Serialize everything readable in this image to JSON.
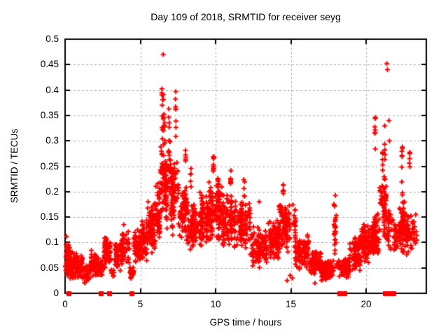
{
  "chart_data": {
    "type": "scatter",
    "title": "Day 109 of 2018, SRMTID for receiver seyg",
    "xlabel": "GPS time / hours",
    "ylabel": "SRMTID / TECUs",
    "xlim": [
      0,
      24
    ],
    "ylim": [
      0,
      0.5
    ],
    "x_tick_values": [
      0,
      5,
      10,
      15,
      20
    ],
    "x_tick_labels": [
      "0",
      "5",
      "10",
      "15",
      "20"
    ],
    "y_tick_values": [
      0,
      0.05,
      0.1,
      0.15,
      0.2,
      0.25,
      0.3,
      0.35,
      0.4,
      0.45,
      0.5
    ],
    "y_tick_labels": [
      "0",
      "0.05",
      "0.1",
      "0.15",
      "0.2",
      "0.25",
      "0.3",
      "0.35",
      "0.4",
      "0.45",
      "0.5"
    ],
    "grid": true,
    "legend": "none",
    "marker": "plus",
    "marker_color": "#ff0000",
    "grid_color": "#aaaaaa",
    "border_color": "#000000",
    "text_color": "#000000",
    "background_color": "#ffffff",
    "seed": 42,
    "segments_format": "[t_start_hours, t_end_hours, n_points, y_min_TECUs, y_max_TECUs]",
    "envelope_segments": [
      [
        0.0,
        0.35,
        80,
        0.03,
        0.105
      ],
      [
        0.35,
        0.75,
        70,
        0.025,
        0.085
      ],
      [
        0.75,
        1.15,
        55,
        0.028,
        0.075
      ],
      [
        1.15,
        1.65,
        40,
        0.018,
        0.058
      ],
      [
        1.65,
        2.15,
        55,
        0.03,
        0.088
      ],
      [
        2.15,
        2.6,
        45,
        0.03,
        0.072
      ],
      [
        2.6,
        3.05,
        70,
        0.04,
        0.115
      ],
      [
        3.05,
        3.3,
        8,
        0.03,
        0.06
      ],
      [
        3.3,
        3.75,
        55,
        0.04,
        0.11
      ],
      [
        3.75,
        4.3,
        60,
        0.045,
        0.125
      ],
      [
        4.3,
        4.55,
        22,
        0.022,
        0.062
      ],
      [
        4.55,
        5.0,
        55,
        0.055,
        0.13
      ],
      [
        5.0,
        5.45,
        60,
        0.06,
        0.15
      ],
      [
        5.45,
        5.95,
        70,
        0.07,
        0.185
      ],
      [
        5.95,
        6.3,
        55,
        0.09,
        0.22
      ],
      [
        6.3,
        6.7,
        55,
        0.13,
        0.3
      ],
      [
        6.7,
        7.1,
        55,
        0.12,
        0.28
      ],
      [
        7.1,
        7.6,
        65,
        0.11,
        0.27
      ],
      [
        7.6,
        8.1,
        70,
        0.1,
        0.22
      ],
      [
        8.1,
        8.75,
        85,
        0.08,
        0.185
      ],
      [
        8.75,
        9.45,
        90,
        0.09,
        0.2
      ],
      [
        9.45,
        9.95,
        60,
        0.1,
        0.225
      ],
      [
        9.95,
        10.45,
        60,
        0.1,
        0.225
      ],
      [
        10.45,
        11.25,
        100,
        0.09,
        0.2
      ],
      [
        11.25,
        12.3,
        120,
        0.08,
        0.195
      ],
      [
        12.3,
        13.4,
        115,
        0.05,
        0.135
      ],
      [
        13.4,
        14.2,
        100,
        0.06,
        0.15
      ],
      [
        14.2,
        15.3,
        110,
        0.075,
        0.185
      ],
      [
        15.3,
        16.2,
        95,
        0.045,
        0.115
      ],
      [
        16.2,
        17.0,
        110,
        0.03,
        0.085
      ],
      [
        17.0,
        17.85,
        110,
        0.022,
        0.07
      ],
      [
        17.85,
        18.05,
        22,
        0.05,
        0.185
      ],
      [
        18.05,
        18.9,
        80,
        0.028,
        0.078
      ],
      [
        18.9,
        19.6,
        80,
        0.04,
        0.11
      ],
      [
        19.6,
        20.3,
        85,
        0.055,
        0.14
      ],
      [
        20.3,
        20.9,
        75,
        0.07,
        0.165
      ],
      [
        20.9,
        21.35,
        60,
        0.1,
        0.24
      ],
      [
        21.35,
        21.8,
        32,
        0.08,
        0.175
      ],
      [
        21.8,
        22.1,
        30,
        0.07,
        0.14
      ],
      [
        22.1,
        22.7,
        90,
        0.075,
        0.185
      ],
      [
        22.7,
        23.1,
        45,
        0.08,
        0.165
      ],
      [
        23.1,
        23.4,
        16,
        0.09,
        0.15
      ]
    ],
    "columns_format": "[t_hours, n_points, y_min_TECUs, y_max_TECUs] vertical streaks",
    "columns": [
      [
        6.45,
        16,
        0.2,
        0.445
      ],
      [
        6.55,
        8,
        0.28,
        0.4
      ],
      [
        6.62,
        6,
        0.22,
        0.34
      ],
      [
        6.9,
        10,
        0.26,
        0.365
      ],
      [
        7.0,
        7,
        0.22,
        0.31
      ],
      [
        7.35,
        8,
        0.3,
        0.4
      ],
      [
        8.0,
        5,
        0.23,
        0.285
      ],
      [
        8.35,
        5,
        0.2,
        0.25
      ],
      [
        9.85,
        9,
        0.235,
        0.272
      ],
      [
        10.15,
        6,
        0.19,
        0.235
      ],
      [
        11.0,
        6,
        0.21,
        0.25
      ],
      [
        11.9,
        5,
        0.19,
        0.225
      ],
      [
        14.5,
        6,
        0.185,
        0.215
      ],
      [
        17.95,
        6,
        0.12,
        0.2
      ],
      [
        20.6,
        7,
        0.28,
        0.35
      ],
      [
        21.1,
        6,
        0.24,
        0.3
      ],
      [
        21.25,
        5,
        0.26,
        0.33
      ],
      [
        22.4,
        9,
        0.19,
        0.29
      ],
      [
        22.9,
        5,
        0.23,
        0.285
      ]
    ],
    "outliers_format": "[t_hours, y_TECUs] individually visible points",
    "outliers": [
      [
        6.52,
        0.47
      ],
      [
        21.38,
        0.452
      ],
      [
        21.42,
        0.44
      ],
      [
        9.9,
        0.268
      ],
      [
        20.62,
        0.346
      ],
      [
        21.52,
        0.34
      ],
      [
        21.55,
        0.3
      ],
      [
        12.9,
        0.18
      ],
      [
        0.1,
        0.112
      ],
      [
        3.9,
        0.135
      ],
      [
        14.75,
        0.025
      ],
      [
        14.95,
        0.035
      ],
      [
        15.1,
        0.03
      ],
      [
        16.6,
        0.02
      ],
      [
        23.3,
        0.155
      ]
    ],
    "zero_line_squares_hours": [
      0.23,
      2.37,
      2.93,
      4.42,
      18.23,
      18.56,
      21.26,
      21.5,
      21.65,
      21.8
    ]
  }
}
